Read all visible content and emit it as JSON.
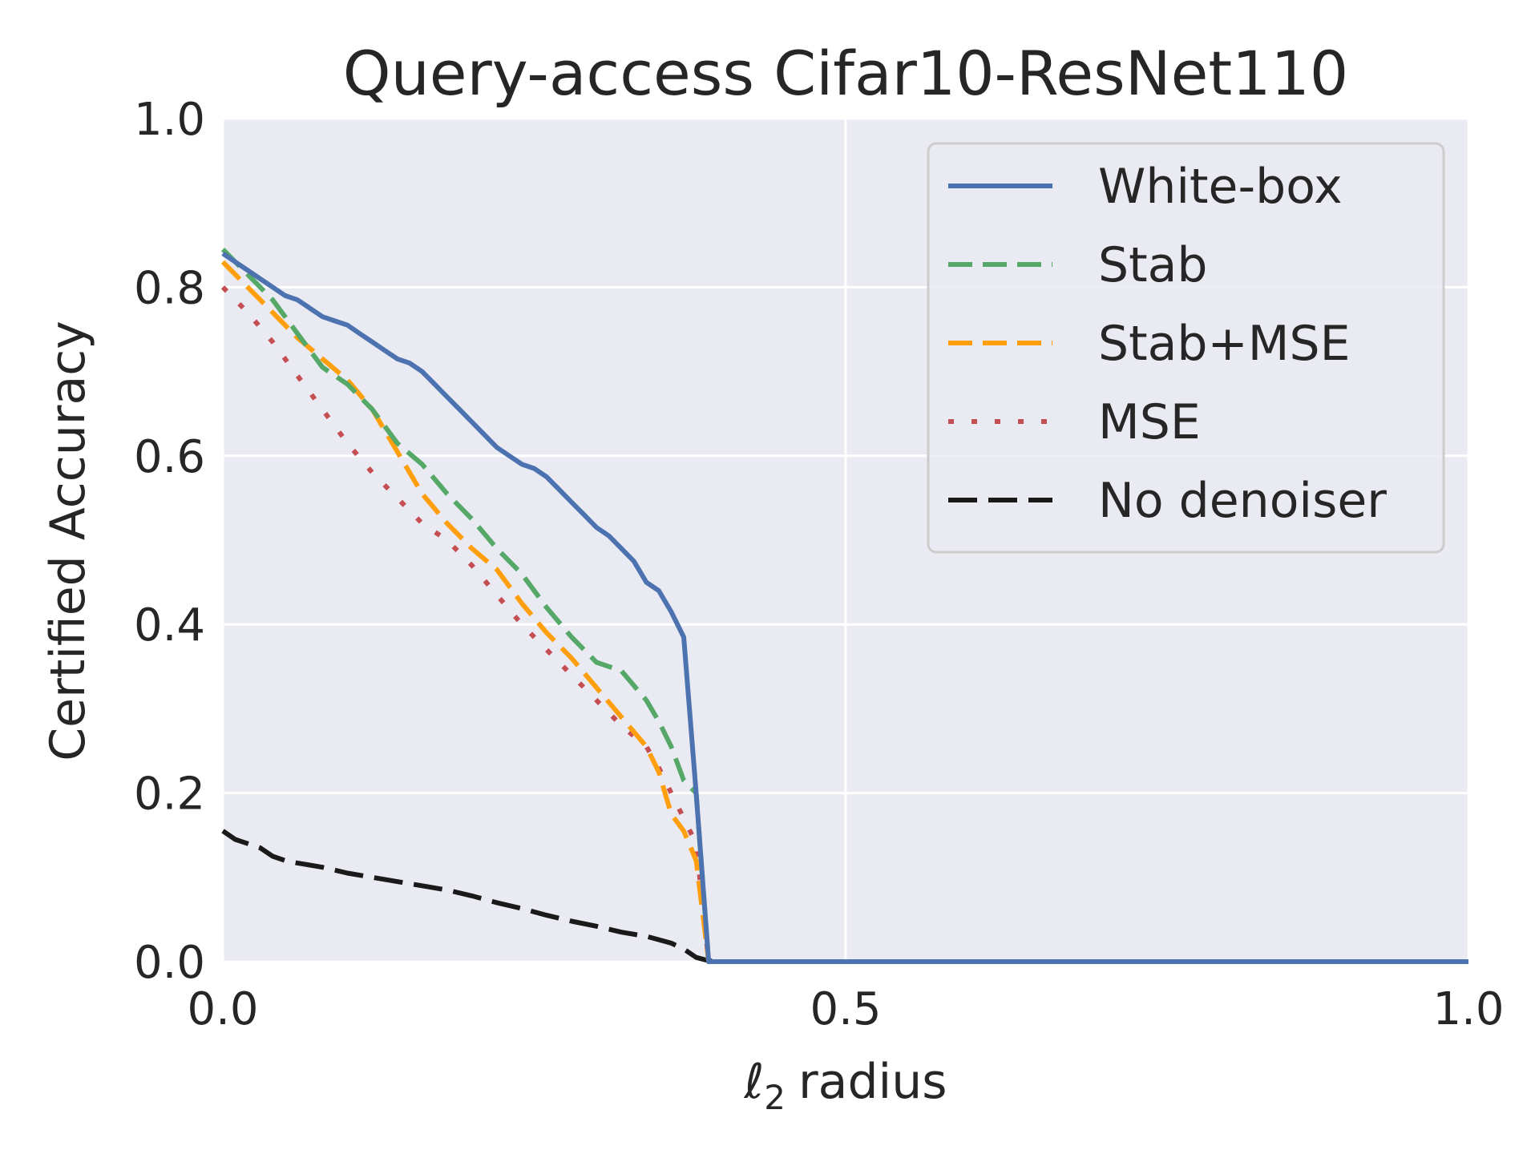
{
  "chart_data": {
    "type": "line",
    "title": "Query-access Cifar10-ResNet110",
    "xlabel": {
      "symbol": "ℓ",
      "subscript": "2",
      "text": "radius"
    },
    "ylabel": "Certified Accuracy",
    "xlim": [
      0.0,
      1.0
    ],
    "ylim": [
      0.0,
      1.0
    ],
    "xticks": [
      "0.0",
      "0.5",
      "1.0"
    ],
    "xtick_values": [
      0.0,
      0.5,
      1.0
    ],
    "yticks": [
      "0.0",
      "0.2",
      "0.4",
      "0.6",
      "0.8",
      "1.0"
    ],
    "ytick_values": [
      0.0,
      0.2,
      0.4,
      0.6,
      0.8,
      1.0
    ],
    "grid": true,
    "legend_position": "top-right",
    "background": "#eaeaf2",
    "series": [
      {
        "name": "White-box",
        "color": "#4c72b0",
        "style": "solid",
        "x": [
          0.0,
          0.01,
          0.02,
          0.03,
          0.04,
          0.05,
          0.06,
          0.07,
          0.08,
          0.09,
          0.1,
          0.11,
          0.12,
          0.13,
          0.14,
          0.15,
          0.16,
          0.17,
          0.18,
          0.19,
          0.2,
          0.21,
          0.22,
          0.23,
          0.24,
          0.25,
          0.26,
          0.27,
          0.28,
          0.29,
          0.3,
          0.31,
          0.32,
          0.33,
          0.34,
          0.35,
          0.36,
          0.37,
          0.38,
          0.39,
          0.4,
          1.0
        ],
        "y": [
          0.84,
          0.83,
          0.82,
          0.81,
          0.8,
          0.79,
          0.785,
          0.775,
          0.765,
          0.76,
          0.755,
          0.745,
          0.735,
          0.725,
          0.715,
          0.71,
          0.7,
          0.685,
          0.67,
          0.655,
          0.64,
          0.625,
          0.61,
          0.6,
          0.59,
          0.585,
          0.575,
          0.56,
          0.545,
          0.53,
          0.515,
          0.505,
          0.49,
          0.475,
          0.45,
          0.44,
          0.415,
          0.385,
          0.2,
          0.0,
          0.0,
          0.0
        ]
      },
      {
        "name": "Stab",
        "color": "#55a868",
        "style": "dashed",
        "x": [
          0.0,
          0.02,
          0.04,
          0.06,
          0.08,
          0.1,
          0.12,
          0.14,
          0.16,
          0.18,
          0.2,
          0.22,
          0.24,
          0.26,
          0.28,
          0.3,
          0.32,
          0.34,
          0.35,
          0.36,
          0.37,
          0.38,
          0.385,
          0.39,
          0.4,
          1.0
        ],
        "y": [
          0.845,
          0.815,
          0.785,
          0.745,
          0.705,
          0.685,
          0.655,
          0.615,
          0.59,
          0.555,
          0.525,
          0.49,
          0.46,
          0.42,
          0.385,
          0.355,
          0.345,
          0.31,
          0.285,
          0.255,
          0.215,
          0.2,
          0.1,
          0.0,
          0.0,
          0.0
        ]
      },
      {
        "name": "Stab+MSE",
        "color": "#ff9f0e",
        "style": "dashed",
        "x": [
          0.0,
          0.02,
          0.04,
          0.06,
          0.08,
          0.1,
          0.12,
          0.14,
          0.16,
          0.18,
          0.2,
          0.22,
          0.24,
          0.26,
          0.28,
          0.3,
          0.32,
          0.34,
          0.35,
          0.36,
          0.37,
          0.38,
          0.385,
          0.39,
          0.4,
          1.0
        ],
        "y": [
          0.83,
          0.8,
          0.77,
          0.74,
          0.715,
          0.69,
          0.655,
          0.605,
          0.555,
          0.52,
          0.49,
          0.465,
          0.425,
          0.39,
          0.36,
          0.325,
          0.29,
          0.255,
          0.225,
          0.175,
          0.155,
          0.12,
          0.06,
          0.0,
          0.0,
          0.0
        ]
      },
      {
        "name": "MSE",
        "color": "#c44e52",
        "style": "dotted",
        "x": [
          0.0,
          0.02,
          0.04,
          0.06,
          0.08,
          0.1,
          0.12,
          0.14,
          0.16,
          0.18,
          0.2,
          0.22,
          0.24,
          0.26,
          0.28,
          0.3,
          0.32,
          0.34,
          0.35,
          0.36,
          0.37,
          0.38,
          0.385,
          0.39,
          0.4,
          1.0
        ],
        "y": [
          0.8,
          0.77,
          0.735,
          0.695,
          0.655,
          0.615,
          0.58,
          0.55,
          0.52,
          0.5,
          0.47,
          0.435,
          0.4,
          0.37,
          0.34,
          0.31,
          0.28,
          0.255,
          0.23,
          0.2,
          0.17,
          0.14,
          0.07,
          0.0,
          0.0,
          0.0
        ]
      },
      {
        "name": "No denoiser",
        "color": "#1a1a1a",
        "style": "longdash",
        "x": [
          0.0,
          0.01,
          0.02,
          0.03,
          0.04,
          0.05,
          0.06,
          0.08,
          0.1,
          0.12,
          0.14,
          0.16,
          0.18,
          0.2,
          0.22,
          0.24,
          0.26,
          0.28,
          0.3,
          0.32,
          0.34,
          0.36,
          0.37,
          0.38,
          0.39,
          0.4,
          1.0
        ],
        "y": [
          0.155,
          0.145,
          0.14,
          0.135,
          0.125,
          0.12,
          0.117,
          0.112,
          0.105,
          0.1,
          0.095,
          0.09,
          0.085,
          0.078,
          0.07,
          0.063,
          0.055,
          0.048,
          0.042,
          0.035,
          0.03,
          0.022,
          0.015,
          0.005,
          0.001,
          0.0,
          0.0
        ]
      }
    ]
  }
}
